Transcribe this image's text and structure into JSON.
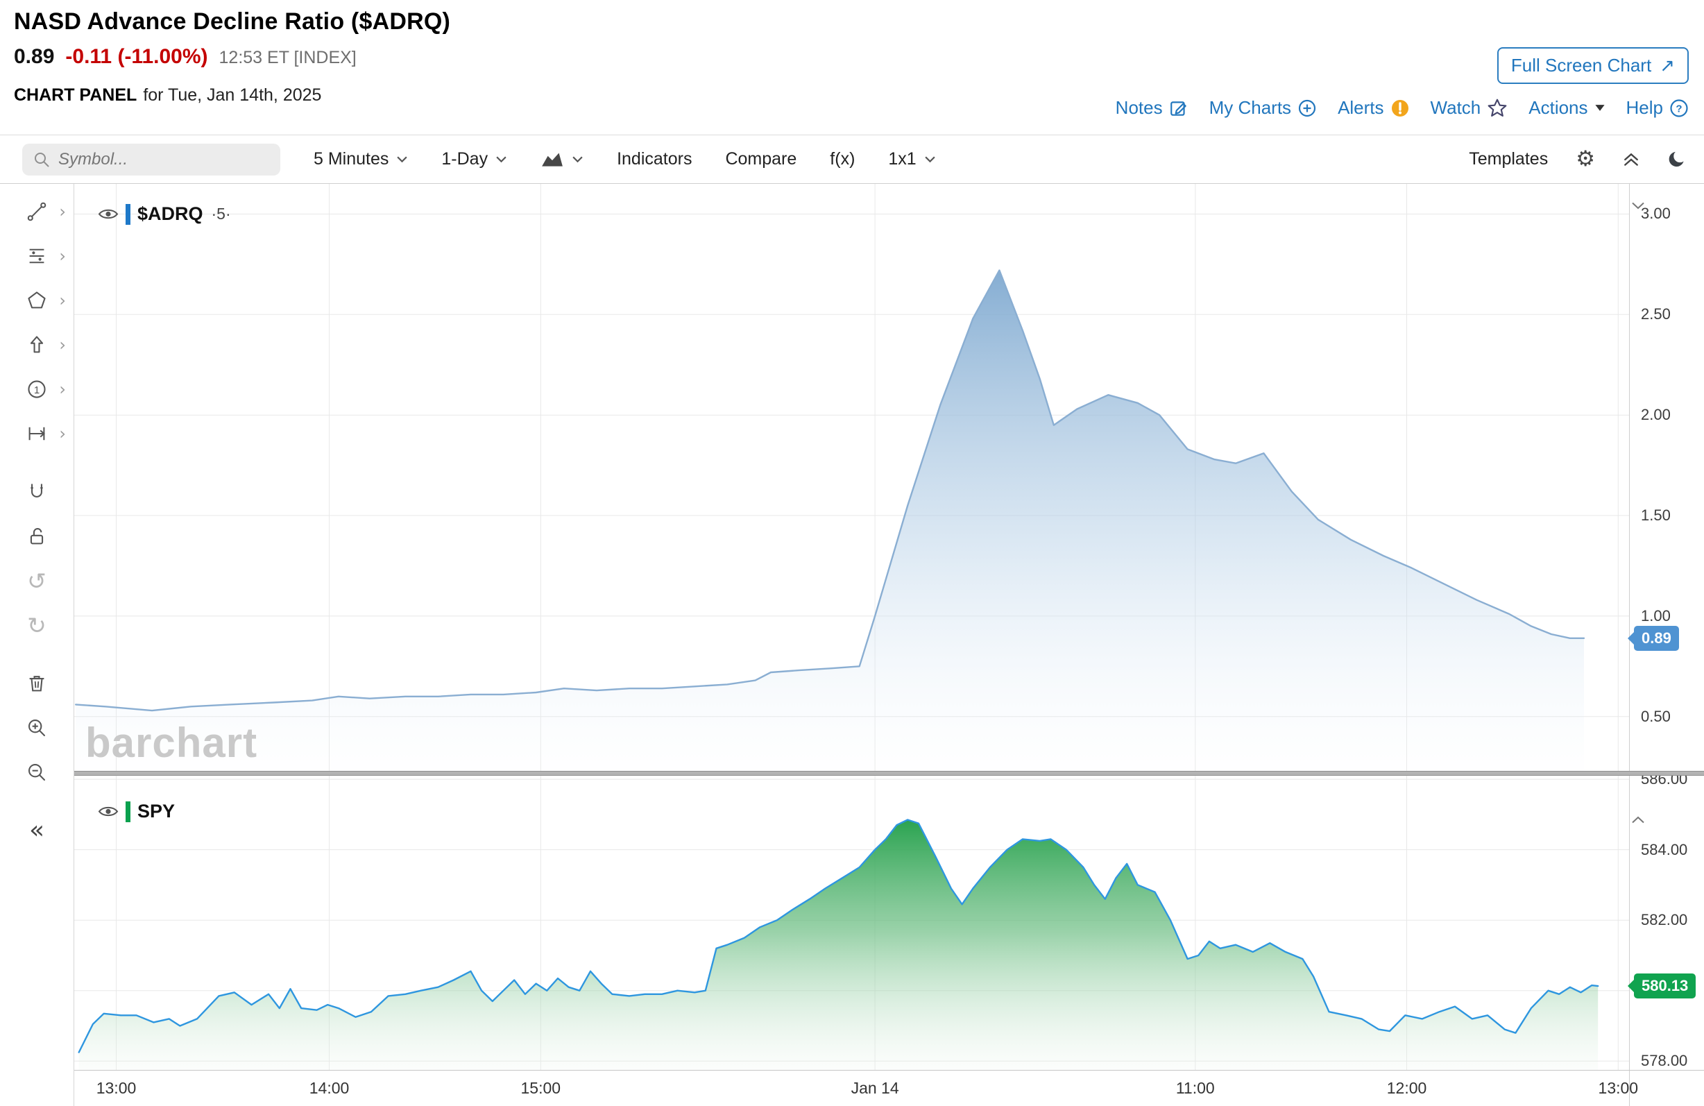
{
  "colors": {
    "accent_blue": "#2176bd",
    "negative_red": "#c40000",
    "alert_orange": "#f2a51c",
    "grid_line": "#e8e8e8",
    "adrq_line": "#8aaed2",
    "adrq_badge": "#4f93d2",
    "spy_line": "#2e96df",
    "spy_badge": "#10a34f"
  },
  "header": {
    "title": "NASD Advance Decline Ratio ($ADRQ)",
    "quote": {
      "last": "0.89",
      "change": "-0.11 (-11.00%)",
      "time": "12:53 ET [INDEX]"
    },
    "full_screen": {
      "label": "Full Screen Chart"
    },
    "panel": {
      "label": "CHART PANEL",
      "date": "for Tue, Jan 14th, 2025"
    },
    "links": {
      "notes": "Notes",
      "my_charts": "My Charts",
      "alerts": "Alerts",
      "watch": "Watch",
      "actions": "Actions",
      "help": "Help"
    }
  },
  "toolbar": {
    "symbol_placeholder": "Symbol...",
    "period": "5 Minutes",
    "range": "1-Day",
    "indicators": "Indicators",
    "compare": "Compare",
    "fx": "f(x)",
    "grid": "1x1",
    "templates": "Templates"
  },
  "glyphs": {
    "fullscreen_arrow": "↗",
    "tool_expand": "›",
    "collapse_sidebar": "«",
    "settings_gear": "⚙",
    "undo": "↺",
    "redo": "↻",
    "annotation_one": "1",
    "help_q": "?"
  },
  "sidebar_tools": [
    "trendline",
    "fibonacci",
    "shapes",
    "arrow",
    "annotation",
    "measure",
    "magnet",
    "lock",
    "undo",
    "redo",
    "delete",
    "zoom-in",
    "zoom-out",
    "collapse"
  ],
  "watermark": "barchart",
  "xaxis": {
    "labels": [
      "13:00",
      "14:00",
      "15:00",
      "Jan 14",
      "11:00",
      "12:00",
      "13:00"
    ],
    "fracs": [
      0.027,
      0.164,
      0.3,
      0.515,
      0.721,
      0.857,
      0.993
    ]
  },
  "chart_data": [
    {
      "type": "area",
      "symbol": "$ADRQ",
      "interval_badge": "·5·",
      "title": "NASD Advance Decline Ratio ($ADRQ) - 5 Minutes - 1-Day",
      "ylim": [
        0.23,
        3.15
      ],
      "yticks": [
        3.0,
        2.5,
        2.0,
        1.5,
        1.0,
        0.5
      ],
      "ytick_labels": [
        "3.00",
        "2.50",
        "2.00",
        "1.50",
        "1.00",
        "0.50"
      ],
      "last": 0.89,
      "last_label": "0.89",
      "line_color": "#8aaed2",
      "badge_color": "#4f93d2",
      "legend_bar": "#1e79c9",
      "fill": [
        [
          0,
          "#7fa9d0",
          0.95
        ],
        [
          0.55,
          "#b9d2e8",
          0.5
        ],
        [
          1,
          "#f4f9fd",
          0.08
        ]
      ],
      "points": [
        [
          0.001,
          0.56
        ],
        [
          0.02,
          0.55
        ],
        [
          0.05,
          0.53
        ],
        [
          0.075,
          0.55
        ],
        [
          0.1,
          0.56
        ],
        [
          0.128,
          0.57
        ],
        [
          0.153,
          0.58
        ],
        [
          0.17,
          0.6
        ],
        [
          0.19,
          0.59
        ],
        [
          0.213,
          0.6
        ],
        [
          0.234,
          0.6
        ],
        [
          0.255,
          0.61
        ],
        [
          0.276,
          0.61
        ],
        [
          0.297,
          0.62
        ],
        [
          0.315,
          0.64
        ],
        [
          0.336,
          0.63
        ],
        [
          0.357,
          0.64
        ],
        [
          0.378,
          0.64
        ],
        [
          0.399,
          0.65
        ],
        [
          0.42,
          0.66
        ],
        [
          0.438,
          0.68
        ],
        [
          0.448,
          0.72
        ],
        [
          0.466,
          0.73
        ],
        [
          0.487,
          0.74
        ],
        [
          0.505,
          0.75
        ],
        [
          0.515,
          1.0
        ],
        [
          0.536,
          1.55
        ],
        [
          0.557,
          2.05
        ],
        [
          0.578,
          2.48
        ],
        [
          0.595,
          2.72
        ],
        [
          0.61,
          2.42
        ],
        [
          0.621,
          2.18
        ],
        [
          0.63,
          1.95
        ],
        [
          0.645,
          2.03
        ],
        [
          0.665,
          2.1
        ],
        [
          0.684,
          2.06
        ],
        [
          0.698,
          2.0
        ],
        [
          0.716,
          1.83
        ],
        [
          0.733,
          1.78
        ],
        [
          0.747,
          1.76
        ],
        [
          0.765,
          1.81
        ],
        [
          0.783,
          1.62
        ],
        [
          0.8,
          1.48
        ],
        [
          0.821,
          1.38
        ],
        [
          0.842,
          1.3
        ],
        [
          0.86,
          1.24
        ],
        [
          0.881,
          1.16
        ],
        [
          0.902,
          1.08
        ],
        [
          0.923,
          1.01
        ],
        [
          0.937,
          0.95
        ],
        [
          0.95,
          0.91
        ],
        [
          0.962,
          0.89
        ],
        [
          0.971,
          0.89
        ]
      ]
    },
    {
      "type": "area",
      "symbol": "SPY",
      "interval_badge": "",
      "title": "SPY comparison pane",
      "ylim": [
        577.75,
        586.1
      ],
      "yticks": [
        586.0,
        584.0,
        582.0,
        580.0,
        578.0
      ],
      "ytick_labels": [
        "586.00",
        "584.00",
        "582.00",
        "580.00",
        "578.00"
      ],
      "last": 580.13,
      "last_label": "580.13",
      "line_color": "#2e96df",
      "badge_color": "#10a34f",
      "legend_bar": "#0aa14e",
      "fill": [
        [
          0,
          "#1f9e47",
          0.95
        ],
        [
          0.45,
          "#6fbf85",
          0.7
        ],
        [
          1,
          "#eef6ef",
          0.2
        ]
      ],
      "points": [
        [
          0.003,
          578.25
        ],
        [
          0.012,
          579.05
        ],
        [
          0.019,
          579.35
        ],
        [
          0.03,
          579.3
        ],
        [
          0.04,
          579.3
        ],
        [
          0.051,
          579.1
        ],
        [
          0.061,
          579.2
        ],
        [
          0.068,
          579.0
        ],
        [
          0.079,
          579.2
        ],
        [
          0.093,
          579.85
        ],
        [
          0.103,
          579.95
        ],
        [
          0.114,
          579.6
        ],
        [
          0.125,
          579.9
        ],
        [
          0.132,
          579.5
        ],
        [
          0.139,
          580.05
        ],
        [
          0.146,
          579.5
        ],
        [
          0.156,
          579.45
        ],
        [
          0.163,
          579.6
        ],
        [
          0.17,
          579.5
        ],
        [
          0.181,
          579.25
        ],
        [
          0.191,
          579.4
        ],
        [
          0.202,
          579.85
        ],
        [
          0.213,
          579.9
        ],
        [
          0.223,
          580.0
        ],
        [
          0.234,
          580.1
        ],
        [
          0.244,
          580.3
        ],
        [
          0.255,
          580.55
        ],
        [
          0.262,
          580.0
        ],
        [
          0.269,
          579.7
        ],
        [
          0.276,
          580.0
        ],
        [
          0.283,
          580.3
        ],
        [
          0.29,
          579.9
        ],
        [
          0.297,
          580.2
        ],
        [
          0.304,
          580.0
        ],
        [
          0.311,
          580.35
        ],
        [
          0.318,
          580.1
        ],
        [
          0.325,
          580.0
        ],
        [
          0.332,
          580.55
        ],
        [
          0.339,
          580.2
        ],
        [
          0.346,
          579.9
        ],
        [
          0.357,
          579.85
        ],
        [
          0.367,
          579.9
        ],
        [
          0.378,
          579.9
        ],
        [
          0.388,
          580.0
        ],
        [
          0.399,
          579.95
        ],
        [
          0.406,
          580.0
        ],
        [
          0.413,
          581.2
        ],
        [
          0.42,
          581.3
        ],
        [
          0.431,
          581.5
        ],
        [
          0.441,
          581.8
        ],
        [
          0.452,
          582.0
        ],
        [
          0.462,
          582.3
        ],
        [
          0.473,
          582.6
        ],
        [
          0.483,
          582.9
        ],
        [
          0.494,
          583.2
        ],
        [
          0.505,
          583.5
        ],
        [
          0.515,
          584.0
        ],
        [
          0.522,
          584.3
        ],
        [
          0.529,
          584.7
        ],
        [
          0.536,
          584.85
        ],
        [
          0.543,
          584.75
        ],
        [
          0.554,
          583.8
        ],
        [
          0.564,
          582.9
        ],
        [
          0.571,
          582.45
        ],
        [
          0.578,
          582.9
        ],
        [
          0.589,
          583.5
        ],
        [
          0.6,
          584.0
        ],
        [
          0.61,
          584.3
        ],
        [
          0.621,
          584.25
        ],
        [
          0.628,
          584.3
        ],
        [
          0.638,
          584.0
        ],
        [
          0.649,
          583.5
        ],
        [
          0.656,
          583.0
        ],
        [
          0.663,
          582.6
        ],
        [
          0.67,
          583.2
        ],
        [
          0.677,
          583.6
        ],
        [
          0.684,
          583.0
        ],
        [
          0.695,
          582.8
        ],
        [
          0.705,
          582.0
        ],
        [
          0.716,
          580.9
        ],
        [
          0.723,
          581.0
        ],
        [
          0.73,
          581.4
        ],
        [
          0.737,
          581.2
        ],
        [
          0.747,
          581.3
        ],
        [
          0.758,
          581.1
        ],
        [
          0.769,
          581.35
        ],
        [
          0.779,
          581.1
        ],
        [
          0.79,
          580.9
        ],
        [
          0.797,
          580.4
        ],
        [
          0.807,
          579.4
        ],
        [
          0.818,
          579.3
        ],
        [
          0.828,
          579.2
        ],
        [
          0.839,
          578.9
        ],
        [
          0.846,
          578.85
        ],
        [
          0.856,
          579.3
        ],
        [
          0.867,
          579.2
        ],
        [
          0.878,
          579.4
        ],
        [
          0.888,
          579.55
        ],
        [
          0.899,
          579.2
        ],
        [
          0.909,
          579.3
        ],
        [
          0.92,
          578.9
        ],
        [
          0.927,
          578.8
        ],
        [
          0.937,
          579.5
        ],
        [
          0.948,
          580.0
        ],
        [
          0.955,
          579.9
        ],
        [
          0.962,
          580.1
        ],
        [
          0.969,
          579.95
        ],
        [
          0.976,
          580.15
        ],
        [
          0.98,
          580.13
        ]
      ]
    }
  ]
}
